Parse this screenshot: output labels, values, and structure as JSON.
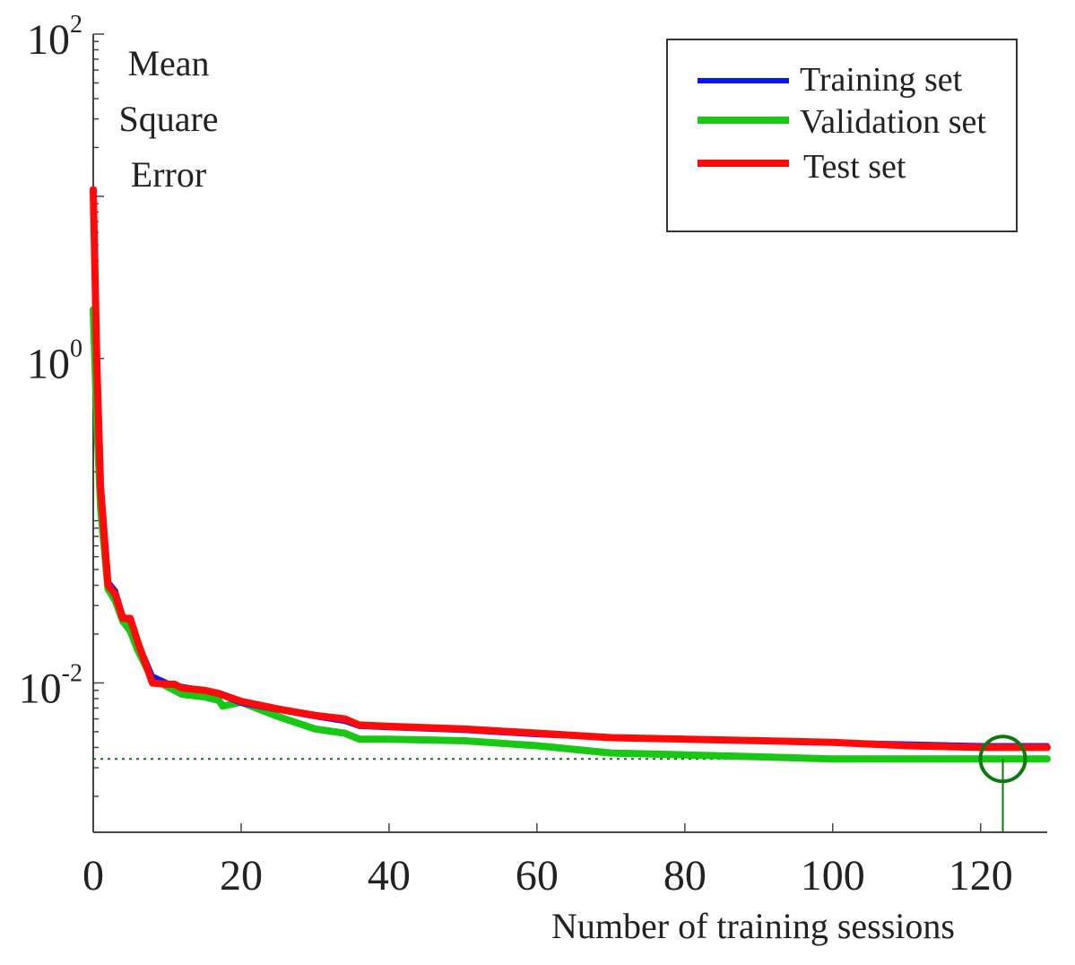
{
  "chart_data": {
    "type": "line",
    "title": "",
    "ylabel_lines": [
      "Mean",
      "Square",
      "Error"
    ],
    "xlabel": "Number of training sessions",
    "yscale": "log",
    "ylim": [
      0.0012,
      100
    ],
    "xlim": [
      0,
      129
    ],
    "xticks": [
      0,
      20,
      40,
      60,
      80,
      100,
      120
    ],
    "xtick_labels": [
      "0",
      "20",
      "40",
      "60",
      "80",
      "100",
      "120"
    ],
    "yticks": [
      {
        "value": 100,
        "base": "10",
        "exp": "2"
      },
      {
        "value": 1,
        "base": "10",
        "exp": "0"
      },
      {
        "value": 0.01,
        "base": "10",
        "exp": "-2"
      }
    ],
    "grid": false,
    "legend_position": "top-right",
    "series": [
      {
        "name": "Training set",
        "color": "#0a14ff",
        "x": [
          0,
          0.5,
          1,
          2,
          3,
          4,
          5,
          6,
          8,
          10,
          12,
          15,
          17,
          20,
          25,
          30,
          34,
          36,
          40,
          50,
          60,
          70,
          80,
          90,
          100,
          110,
          120,
          129
        ],
        "y": [
          10.0,
          0.8,
          0.15,
          0.042,
          0.037,
          0.026,
          0.024,
          0.018,
          0.011,
          0.01,
          0.0095,
          0.009,
          0.0085,
          0.0075,
          0.0068,
          0.0062,
          0.0058,
          0.0054,
          0.0053,
          0.0051,
          0.0048,
          0.0046,
          0.0045,
          0.0044,
          0.0043,
          0.0042,
          0.0041,
          0.0041
        ]
      },
      {
        "name": "Validation set",
        "color": "#19c815",
        "x": [
          0,
          0.5,
          1,
          2,
          3,
          4,
          5,
          6,
          8,
          10,
          12,
          15,
          17,
          17.5,
          20,
          25,
          30,
          34,
          36,
          40,
          50,
          60,
          70,
          80,
          90,
          100,
          110,
          120,
          129
        ],
        "y": [
          2.0,
          0.4,
          0.12,
          0.038,
          0.032,
          0.024,
          0.021,
          0.016,
          0.0105,
          0.0095,
          0.0085,
          0.0082,
          0.0078,
          0.0072,
          0.0076,
          0.0062,
          0.0052,
          0.0049,
          0.0045,
          0.0045,
          0.0044,
          0.0041,
          0.0037,
          0.0036,
          0.0035,
          0.0034,
          0.0034,
          0.0034,
          0.0034
        ]
      },
      {
        "name": "Test set",
        "color": "#ff0a0a",
        "x": [
          0,
          0.5,
          1,
          2,
          3,
          4,
          5,
          6,
          8,
          10,
          11,
          12,
          15,
          17,
          20,
          25,
          30,
          34,
          36,
          40,
          50,
          60,
          70,
          80,
          90,
          100,
          110,
          120,
          129
        ],
        "y": [
          11.0,
          0.9,
          0.16,
          0.04,
          0.035,
          0.025,
          0.025,
          0.018,
          0.01,
          0.0098,
          0.0098,
          0.0093,
          0.009,
          0.0086,
          0.0077,
          0.0069,
          0.0063,
          0.006,
          0.0055,
          0.0054,
          0.0052,
          0.0049,
          0.0046,
          0.0045,
          0.0044,
          0.0043,
          0.0041,
          0.004,
          0.004
        ]
      }
    ],
    "best_epoch": {
      "x": 123,
      "y": 0.0034,
      "color": "#0b7a0b"
    },
    "goal_line": {
      "y": 0.0034,
      "color": "#0b7a0b",
      "style": "dotted"
    }
  }
}
